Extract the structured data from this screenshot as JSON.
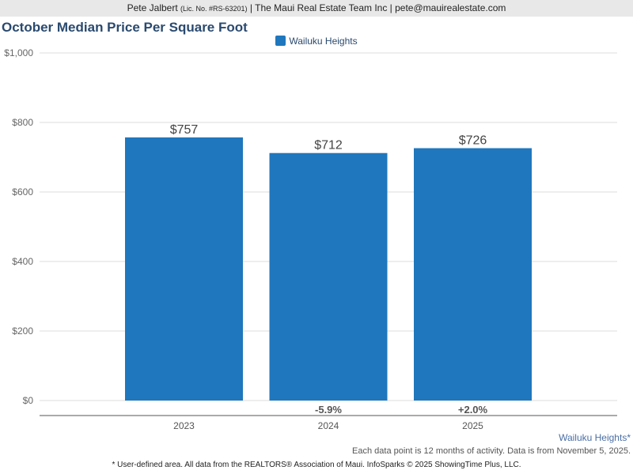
{
  "header": {
    "agent": "Pete Jalbert",
    "license": "(Lic. No. #RS-63201)",
    "rest": "| The Maui Real Estate Team Inc | pete@mauirealestate.com"
  },
  "colors": {
    "bar": "#1f77bd",
    "title": "#2a4a6f"
  },
  "chart_data": {
    "type": "bar",
    "title": "October Median Price Per Square Foot",
    "categories": [
      "2023",
      "2024",
      "2025"
    ],
    "series": [
      {
        "name": "Wailuku Heights",
        "values": [
          757,
          712,
          726
        ]
      }
    ],
    "data_labels": [
      "$757",
      "$712",
      "$726"
    ],
    "change_labels": [
      "",
      "-5.9%",
      "+2.0%"
    ],
    "ylim": [
      0,
      1000
    ],
    "yticks": [
      "$0",
      "$200",
      "$400",
      "$600",
      "$800",
      "$1,000"
    ],
    "grid": true,
    "legend": "top-center"
  },
  "footer": {
    "area": "Wailuku Heights*",
    "note": "Each data point is 12 months of activity. Data is from November 5, 2025.",
    "disclaimer": "* User-defined area. All data from the REALTORS® Association of Maui. InfoSparks © 2025 ShowingTime Plus, LLC."
  }
}
